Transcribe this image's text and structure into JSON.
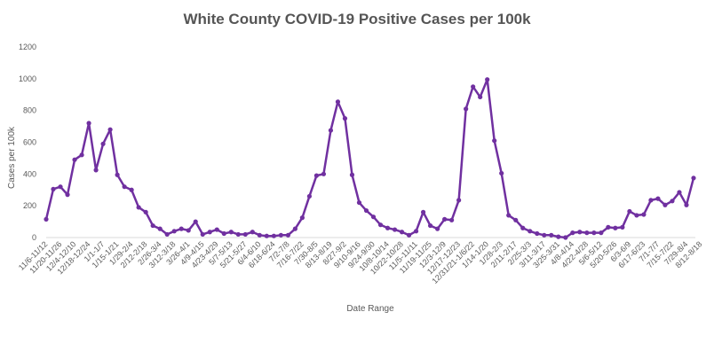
{
  "chart_data": {
    "type": "line",
    "title": "White County COVID-19 Positive Cases per 100k",
    "xlabel": "Date Range",
    "ylabel": "Cases per 100k",
    "ylim": [
      0,
      1200
    ],
    "yticks": [
      0,
      200,
      400,
      600,
      800,
      1000,
      1200
    ],
    "grid": false,
    "legend": "none",
    "color": "#7030A0",
    "x_tick_labels": [
      "11/6-11/12",
      "11/20-11/26",
      "12/4-12/10",
      "12/18-12/24",
      "1/1-1/7",
      "1/15-1/21",
      "1/29-2/4",
      "2/12-2/18",
      "2/26-3/4",
      "3/12-3/18",
      "3/26-4/1",
      "4/9-4/15",
      "4/23-4/29",
      "5/7-5/13",
      "5/21-5/27",
      "6/4-6/10",
      "6/18-6/24",
      "7/2-7/8",
      "7/16-7/22",
      "7/30-8/5",
      "8/13-8/19",
      "8/27-9/2",
      "9/10-9/16",
      "9/24-9/30",
      "10/8-10/14",
      "10/22-10/28",
      "11/5-11/11",
      "11/19-11/25",
      "12/3-12/9",
      "12/17-12/23",
      "12/31/21-1/6/22",
      "1/14-1/20",
      "1/28-2/3",
      "2/11-2/17",
      "2/25-3/3",
      "3/11-3/17",
      "3/25-3/31",
      "4/8-4/14",
      "4/22-4/28",
      "5/6-5/12",
      "5/20-5/26",
      "6/3-6/9",
      "6/17-6/23",
      "7/1-7/7",
      "7/15-7/22",
      "7/29-8/4",
      "8/12-8/18"
    ],
    "values": [
      115,
      305,
      320,
      270,
      490,
      520,
      720,
      425,
      590,
      680,
      395,
      320,
      300,
      190,
      160,
      75,
      55,
      20,
      40,
      55,
      45,
      100,
      20,
      35,
      50,
      25,
      35,
      20,
      20,
      35,
      15,
      10,
      10,
      15,
      15,
      55,
      125,
      260,
      390,
      400,
      675,
      855,
      750,
      395,
      220,
      170,
      130,
      80,
      60,
      50,
      35,
      15,
      40,
      160,
      75,
      55,
      115,
      110,
      235,
      810,
      950,
      885,
      995,
      610,
      405,
      140,
      110,
      60,
      40,
      25,
      15,
      15,
      5,
      0,
      30,
      35,
      30,
      30,
      30,
      65,
      60,
      65,
      165,
      140,
      145,
      235,
      245,
      205,
      230,
      285,
      205,
      375
    ]
  }
}
